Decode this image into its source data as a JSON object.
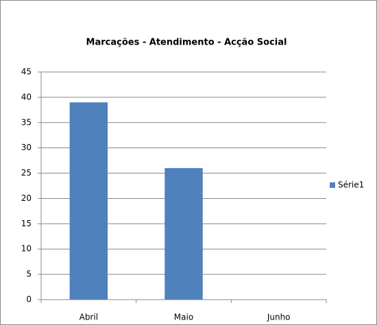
{
  "chart_data": {
    "type": "bar",
    "title": "Marcações  - Atendimento - Acção Social",
    "categories": [
      "Abril",
      "Maio",
      "Junho"
    ],
    "series": [
      {
        "name": "Série1",
        "color": "#4f81bd",
        "values": [
          39,
          26,
          0
        ]
      }
    ],
    "ylim": [
      0,
      45
    ],
    "yticks": [
      0,
      5,
      10,
      15,
      20,
      25,
      30,
      35,
      40,
      45
    ],
    "grid": true,
    "legend": "right"
  }
}
